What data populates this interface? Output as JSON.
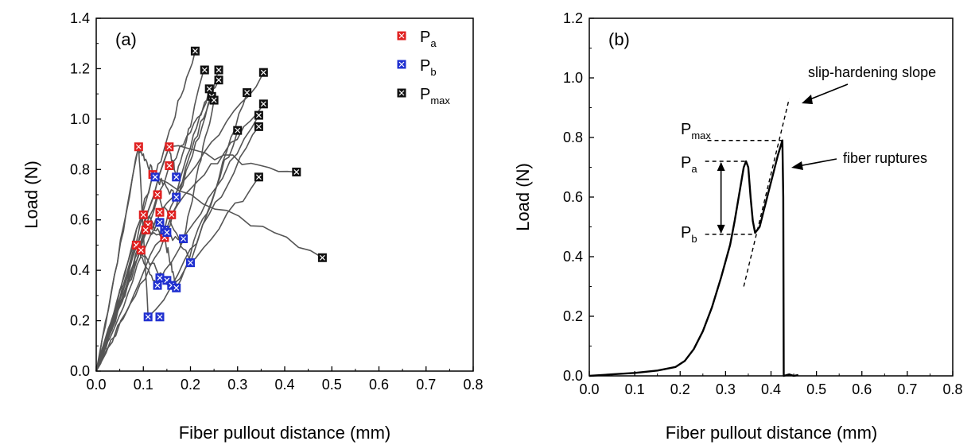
{
  "chart_data": [
    {
      "type": "scatter",
      "panel_label": "(a)",
      "xlabel": "Fiber pullout distance (mm)",
      "ylabel": "Load (N)",
      "xlim": [
        0,
        0.8
      ],
      "ylim": [
        0,
        1.4
      ],
      "xticks": [
        "0.0",
        "0.1",
        "0.2",
        "0.3",
        "0.4",
        "0.5",
        "0.6",
        "0.7",
        "0.8"
      ],
      "yticks": [
        "0.0",
        "0.2",
        "0.4",
        "0.6",
        "0.8",
        "1.0",
        "1.2",
        "1.4"
      ],
      "legend_position": "top-right",
      "legend": [
        {
          "base": "P",
          "sub": "a",
          "color": "#e02020"
        },
        {
          "base": "P",
          "sub": "b",
          "color": "#2030d0"
        },
        {
          "base": "P",
          "sub": "max",
          "color": "#111111"
        }
      ],
      "curve_color": "#555555",
      "series": [
        {
          "name": "Pa",
          "color": "#e02020",
          "points": [
            [
              0.09,
              0.89
            ],
            [
              0.155,
              0.89
            ],
            [
              0.12,
              0.78
            ],
            [
              0.155,
              0.815
            ],
            [
              0.1,
              0.62
            ],
            [
              0.11,
              0.58
            ],
            [
              0.105,
              0.56
            ],
            [
              0.13,
              0.7
            ],
            [
              0.135,
              0.63
            ],
            [
              0.16,
              0.62
            ],
            [
              0.085,
              0.5
            ],
            [
              0.095,
              0.48
            ],
            [
              0.145,
              0.53
            ]
          ]
        },
        {
          "name": "Pb",
          "color": "#2030d0",
          "points": [
            [
              0.125,
              0.77
            ],
            [
              0.17,
              0.77
            ],
            [
              0.17,
              0.69
            ],
            [
              0.135,
              0.59
            ],
            [
              0.145,
              0.56
            ],
            [
              0.15,
              0.55
            ],
            [
              0.185,
              0.525
            ],
            [
              0.2,
              0.43
            ],
            [
              0.135,
              0.37
            ],
            [
              0.15,
              0.36
            ],
            [
              0.13,
              0.34
            ],
            [
              0.16,
              0.34
            ],
            [
              0.17,
              0.33
            ],
            [
              0.11,
              0.215
            ],
            [
              0.135,
              0.215
            ]
          ]
        },
        {
          "name": "Pmax",
          "color": "#111111",
          "points": [
            [
              0.21,
              1.27
            ],
            [
              0.23,
              1.195
            ],
            [
              0.26,
              1.195
            ],
            [
              0.26,
              1.155
            ],
            [
              0.24,
              1.12
            ],
            [
              0.245,
              1.09
            ],
            [
              0.25,
              1.075
            ],
            [
              0.32,
              1.105
            ],
            [
              0.355,
              1.185
            ],
            [
              0.355,
              1.06
            ],
            [
              0.345,
              1.015
            ],
            [
              0.345,
              0.97
            ],
            [
              0.3,
              0.955
            ],
            [
              0.345,
              0.77
            ],
            [
              0.425,
              0.79
            ],
            [
              0.48,
              0.45
            ]
          ]
        }
      ]
    },
    {
      "type": "line",
      "panel_label": "(b)",
      "xlabel": "Fiber pullout distance (mm)",
      "ylabel": "Load (N)",
      "xlim": [
        0,
        0.8
      ],
      "ylim": [
        0,
        1.2
      ],
      "xticks": [
        "0.0",
        "0.1",
        "0.2",
        "0.3",
        "0.4",
        "0.5",
        "0.6",
        "0.7",
        "0.8"
      ],
      "yticks": [
        "0.0",
        "0.2",
        "0.4",
        "0.6",
        "0.8",
        "1.0",
        "1.2"
      ],
      "series": [
        {
          "points": [
            [
              0.0,
              0.0
            ],
            [
              0.05,
              0.005
            ],
            [
              0.1,
              0.01
            ],
            [
              0.15,
              0.018
            ],
            [
              0.19,
              0.03
            ],
            [
              0.21,
              0.05
            ],
            [
              0.23,
              0.09
            ],
            [
              0.25,
              0.15
            ],
            [
              0.27,
              0.23
            ],
            [
              0.29,
              0.33
            ],
            [
              0.31,
              0.44
            ],
            [
              0.32,
              0.52
            ],
            [
              0.33,
              0.61
            ],
            [
              0.34,
              0.7
            ],
            [
              0.345,
              0.72
            ],
            [
              0.35,
              0.7
            ],
            [
              0.355,
              0.6
            ],
            [
              0.36,
              0.52
            ],
            [
              0.365,
              0.48
            ],
            [
              0.375,
              0.5
            ],
            [
              0.385,
              0.56
            ],
            [
              0.395,
              0.62
            ],
            [
              0.405,
              0.68
            ],
            [
              0.415,
              0.74
            ],
            [
              0.425,
              0.79
            ],
            [
              0.427,
              0.6
            ],
            [
              0.428,
              0.0
            ],
            [
              0.44,
              0.005
            ],
            [
              0.45,
              0.0
            ],
            [
              0.46,
              0.003
            ]
          ]
        }
      ],
      "reference_lines": {
        "p_max": 0.79,
        "p_a": 0.72,
        "p_b": 0.475,
        "slope_line": [
          [
            0.34,
            0.3
          ],
          [
            0.44,
            0.93
          ]
        ]
      },
      "annotations": {
        "p_max": {
          "base": "P",
          "sub": "max"
        },
        "p_a": {
          "base": "P",
          "sub": "a"
        },
        "p_b": {
          "base": "P",
          "sub": "b"
        },
        "slope": "slip-hardening slope",
        "rupture": "fiber ruptures"
      }
    }
  ]
}
